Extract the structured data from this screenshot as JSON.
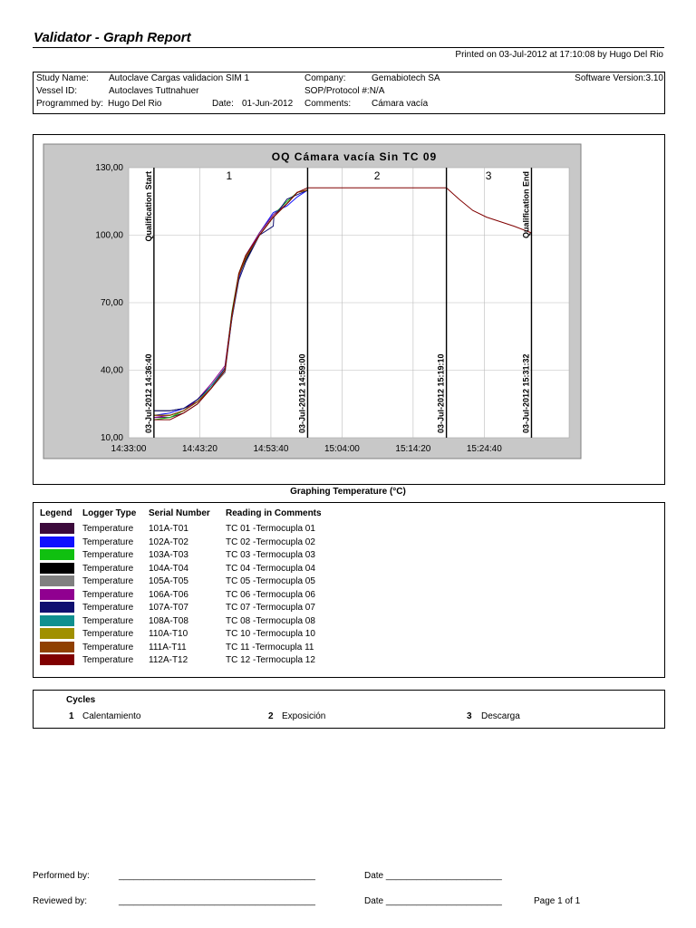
{
  "report": {
    "title": "Validator - Graph Report",
    "printed": "Printed on 03-Jul-2012 at 17:10:08 by Hugo Del Rio"
  },
  "info": {
    "study_label": "Study Name:",
    "study_value": "Autoclave Cargas validacion SIM 1",
    "company_label": "Company:",
    "company_value": "Gemabiotech SA",
    "software": "Software Version:3.10",
    "vessel_label": "Vessel ID:",
    "vessel_value": "Autoclaves Tuttnahuer",
    "sop": "SOP/Protocol #:N/A",
    "programmed_label": "Programmed by:",
    "programmed_value": "Hugo Del Rio",
    "date_label": "Date:",
    "date_value": "01-Jun-2012",
    "comments_label": "Comments:",
    "comments_value": "Cámara vacía"
  },
  "chart_data": {
    "type": "line",
    "title": "OQ Cámara vacía Sin TC 09",
    "xlabel": "",
    "ylabel": "",
    "x_tick_labels": [
      "14:33:00",
      "14:43:20",
      "14:53:40",
      "15:04:00",
      "15:14:20",
      "15:24:40"
    ],
    "x_tick_minutes": [
      0,
      10.333,
      20.667,
      31,
      41.333,
      51.667
    ],
    "xlim_minutes": [
      0,
      64
    ],
    "y_tick_labels": [
      "10,00",
      "40,00",
      "70,00",
      "100,00",
      "130,00"
    ],
    "ylim": [
      10,
      130
    ],
    "grid": true,
    "markers": [
      {
        "label": "03-Jul-2012 14:36:40",
        "x_minutes": 3.67,
        "name": "Qualification Start"
      },
      {
        "label": "03-Jul-2012 14:59:00",
        "x_minutes": 26.0,
        "name": ""
      },
      {
        "label": "03-Jul-2012 15:19:10",
        "x_minutes": 46.17,
        "name": ""
      },
      {
        "label": "03-Jul-2012 15:31:32",
        "x_minutes": 58.53,
        "name": "Qualification End"
      }
    ],
    "cycle_numbers": [
      {
        "label": "1",
        "x_minutes": 14.6
      },
      {
        "label": "2",
        "x_minutes": 36.1
      },
      {
        "label": "3",
        "x_minutes": 52.3
      }
    ],
    "series": [
      {
        "name": "TC 01",
        "color": "#3c0a3c",
        "x": [
          3.7,
          6,
          8,
          10,
          12,
          14,
          15,
          16,
          17,
          19,
          21,
          23,
          24.5,
          26
        ],
        "y": [
          19,
          19,
          21,
          25,
          32,
          40,
          65,
          82,
          90,
          100,
          108,
          114,
          119,
          120
        ]
      },
      {
        "name": "TC 02",
        "color": "#1010ff",
        "x": [
          3.7,
          6,
          8,
          10,
          12,
          14,
          15,
          16,
          17,
          19,
          21,
          23,
          24.5,
          26
        ],
        "y": [
          20,
          21,
          23,
          27,
          33,
          39,
          63,
          81,
          90,
          101,
          110,
          113,
          117,
          120
        ]
      },
      {
        "name": "TC 03",
        "color": "#10c010",
        "x": [
          3.7,
          6,
          8,
          10,
          12,
          14,
          15,
          16,
          17,
          19,
          21,
          23,
          24.5,
          26
        ],
        "y": [
          18,
          19,
          22,
          27,
          33,
          41,
          66,
          83,
          91,
          101,
          109,
          115,
          119,
          120
        ]
      },
      {
        "name": "TC 04",
        "color": "#000000",
        "x": [
          3.7,
          6,
          8,
          10,
          12,
          14,
          15,
          16,
          17,
          19,
          21,
          23,
          24.5,
          26
        ],
        "y": [
          22,
          22,
          23,
          26,
          32,
          40,
          64,
          82,
          89,
          100,
          108,
          114,
          119,
          120
        ]
      },
      {
        "name": "TC 05",
        "color": "#808080",
        "x": [
          3.7,
          6,
          8,
          10,
          12,
          14,
          15,
          16,
          17,
          19,
          21,
          23,
          24.5,
          26
        ],
        "y": [
          20,
          20,
          22,
          26,
          32,
          39,
          64,
          82,
          90,
          100,
          108,
          114,
          119,
          120
        ]
      },
      {
        "name": "TC 06",
        "color": "#900090",
        "x": [
          3.7,
          6,
          8,
          10,
          12,
          14,
          15,
          16,
          17,
          19,
          21,
          23,
          24.5,
          26
        ],
        "y": [
          19,
          20,
          22,
          27,
          34,
          42,
          65,
          82,
          91,
          101,
          109,
          114,
          119,
          120
        ]
      },
      {
        "name": "TC 07",
        "color": "#101070",
        "x": [
          3.7,
          6,
          8,
          10,
          12,
          14,
          15,
          16,
          17,
          19,
          21,
          21.1,
          23,
          24.5,
          26
        ],
        "y": [
          22,
          22,
          23,
          27,
          33,
          41,
          63,
          80,
          88,
          100,
          104,
          108,
          116,
          118,
          120
        ]
      },
      {
        "name": "TC 08",
        "color": "#109090",
        "x": [
          3.7,
          6,
          8,
          10,
          12,
          14,
          15,
          16,
          17,
          19,
          21,
          23,
          24.5,
          26
        ],
        "y": [
          20,
          20,
          22,
          26,
          33,
          40,
          65,
          82,
          90,
          100,
          108,
          114,
          119,
          120
        ]
      },
      {
        "name": "TC 10",
        "color": "#a09000",
        "x": [
          3.7,
          6,
          8,
          10,
          12,
          14,
          15,
          16,
          17,
          19,
          21,
          23,
          24.5,
          26
        ],
        "y": [
          20,
          20,
          22,
          26,
          32,
          40,
          64,
          82,
          90,
          100,
          108,
          114,
          119,
          120
        ]
      },
      {
        "name": "TC 11",
        "color": "#904000",
        "x": [
          3.7,
          6,
          8,
          10,
          12,
          14,
          15,
          16,
          17,
          19,
          21,
          23,
          24.5,
          26
        ],
        "y": [
          20,
          20,
          22,
          26,
          32,
          40,
          64,
          82,
          90,
          100,
          108,
          114,
          119,
          120
        ]
      },
      {
        "name": "TC 12",
        "color": "#800000",
        "x": [
          3.7,
          6,
          8,
          10,
          12,
          14,
          15,
          16,
          17,
          19,
          21,
          23,
          24.5,
          26,
          36,
          46.17,
          48,
          50,
          52,
          54,
          56,
          58.53
        ],
        "y": [
          18,
          18,
          21,
          25,
          32,
          40,
          65,
          83,
          91,
          100,
          108,
          114,
          119,
          121,
          121,
          121,
          116,
          111,
          108,
          106,
          104,
          101
        ]
      }
    ]
  },
  "graph_caption": "Graphing Temperature (°C)",
  "legend": {
    "headers": [
      "Legend",
      "Logger Type",
      "Serial Number",
      "Reading in Comments"
    ],
    "rows": [
      {
        "color": "#3c0a3c",
        "type": "Temperature",
        "serial": "101A-T01",
        "reading": "TC 01   -Termocupla 01"
      },
      {
        "color": "#1010ff",
        "type": "Temperature",
        "serial": "102A-T02",
        "reading": "TC 02   -Termocupla 02"
      },
      {
        "color": "#10c010",
        "type": "Temperature",
        "serial": "103A-T03",
        "reading": "TC 03   -Termocupla 03"
      },
      {
        "color": "#000000",
        "type": "Temperature",
        "serial": "104A-T04",
        "reading": "TC 04   -Termocupla 04"
      },
      {
        "color": "#808080",
        "type": "Temperature",
        "serial": "105A-T05",
        "reading": "TC 05   -Termocupla 05"
      },
      {
        "color": "#900090",
        "type": "Temperature",
        "serial": "106A-T06",
        "reading": "TC 06   -Termocupla 06"
      },
      {
        "color": "#101070",
        "type": "Temperature",
        "serial": "107A-T07",
        "reading": "TC 07   -Termocupla 07"
      },
      {
        "color": "#109090",
        "type": "Temperature",
        "serial": "108A-T08",
        "reading": "TC 08   -Termocupla 08"
      },
      {
        "color": "#a09000",
        "type": "Temperature",
        "serial": "110A-T10",
        "reading": "TC 10   -Termocupla 10"
      },
      {
        "color": "#904000",
        "type": "Temperature",
        "serial": "111A-T11",
        "reading": "TC 11   -Termocupla 11"
      },
      {
        "color": "#800000",
        "type": "Temperature",
        "serial": "112A-T12",
        "reading": "TC 12   -Termocupla 12"
      }
    ]
  },
  "cycles": {
    "title": "Cycles",
    "items": [
      {
        "num": "1",
        "name": "Calentamiento"
      },
      {
        "num": "2",
        "name": "Exposición"
      },
      {
        "num": "3",
        "name": "Descarga"
      }
    ]
  },
  "footer": {
    "performed_label": "Performed by:",
    "reviewed_label": "Reviewed by:",
    "signature_line": "_______________________________________",
    "date_line": "Date _______________________",
    "page": "Page 1 of 1"
  }
}
